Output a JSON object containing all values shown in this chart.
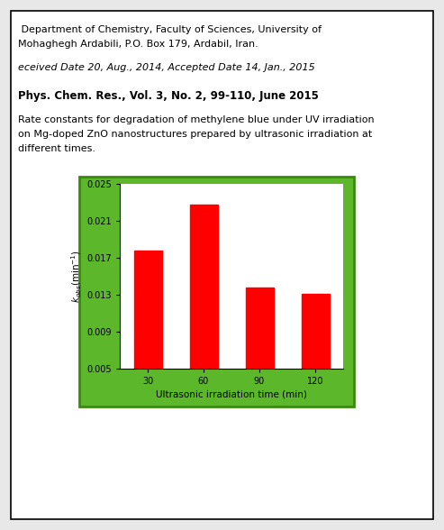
{
  "bar_categories": [
    30,
    60,
    90,
    120
  ],
  "bar_values": [
    0.0178,
    0.0228,
    0.0138,
    0.0131
  ],
  "bar_color": "#ff0000",
  "ylim": [
    0.005,
    0.025
  ],
  "yticks": [
    0.005,
    0.009,
    0.013,
    0.017,
    0.021,
    0.025
  ],
  "xlabel": "Ultrasonic irradiation time (min)",
  "plot_bg_color": "#ffffff",
  "outer_bg_color": "#5cb82a",
  "border_color": "#3a8a10",
  "text_color": "#000000",
  "line1": " Department of Chemistry, Faculty of Sciences, University of",
  "line2": "Mohaghegh Ardabili, P.O. Box 179, Ardabil, Iran.",
  "line3": "eceived Date 20, Aug., 2014, Accepted Date 14, Jan., 2015",
  "line4": "Phys. Chem. Res., Vol. 3, No. 2, 99-110, June 2015",
  "line5a": "Rate constants for degradation of methylene blue under UV irradiation",
  "line5b": "on Mg-doped ZnO nanostructures prepared by ultrasonic irradiation at",
  "line5c": "different times.",
  "frame_bg": "#ffffff",
  "frame_border": "#000000",
  "gray_bg": "#f0f0f0"
}
